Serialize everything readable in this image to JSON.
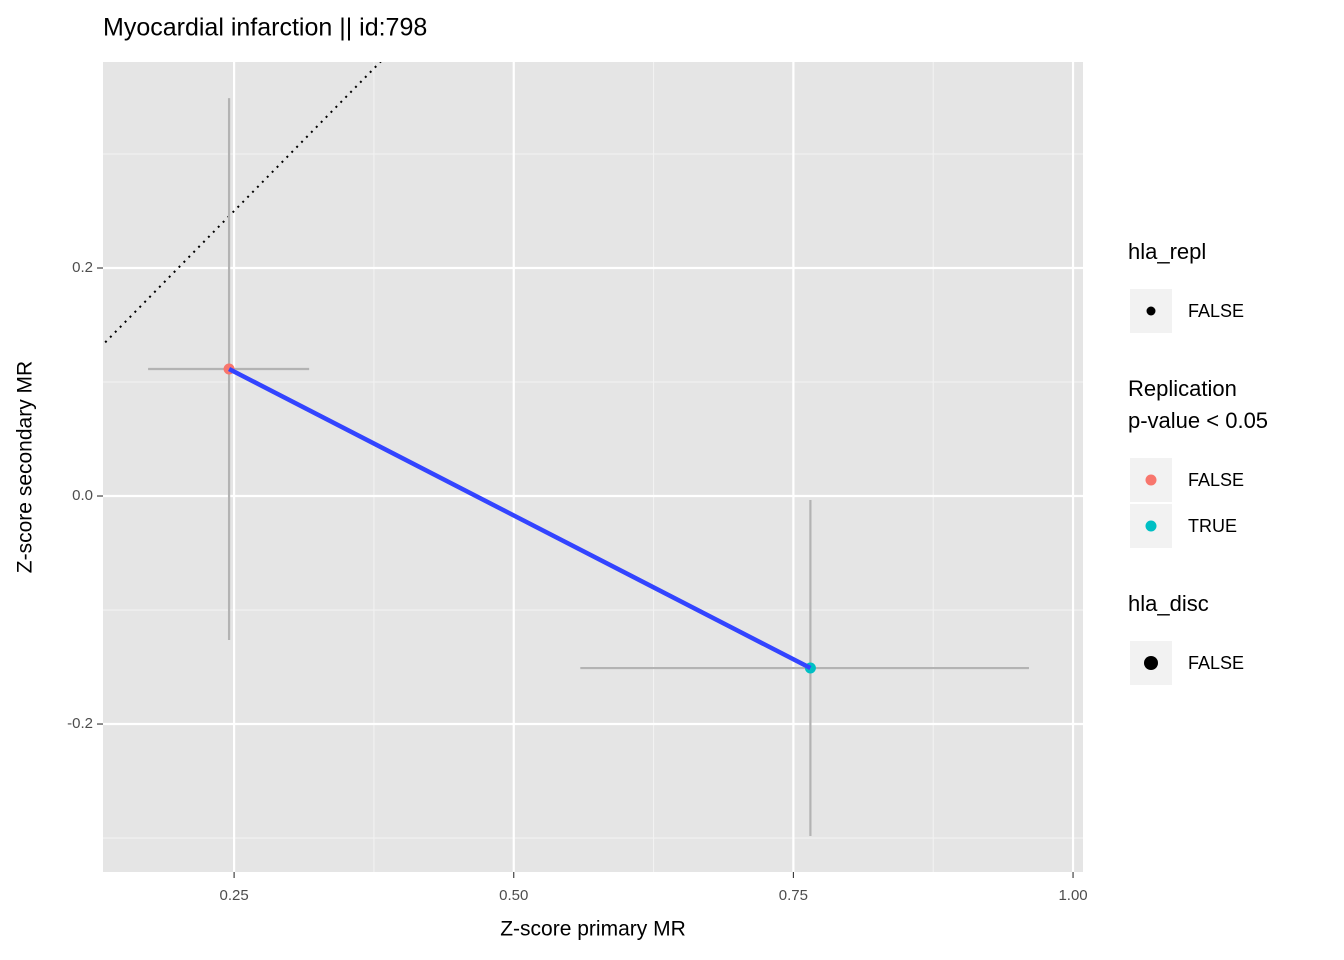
{
  "chart_data": {
    "type": "scatter",
    "title": "Myocardial infarction || id:798",
    "x_label": "Z-score primary MR",
    "y_label": "Z-score secondary MR",
    "xlim": [
      0.1328,
      1.0089
    ],
    "ylim": [
      -0.3298,
      0.3807
    ],
    "xticks": [
      {
        "value": 0.25,
        "label": "0.25"
      },
      {
        "value": 0.5,
        "label": "0.50"
      },
      {
        "value": 0.75,
        "label": "0.75"
      },
      {
        "value": 1.0,
        "label": "1.00"
      }
    ],
    "yticks": [
      {
        "value": -0.2,
        "label": "-0.2"
      },
      {
        "value": 0.0,
        "label": "0.0"
      },
      {
        "value": 0.2,
        "label": "0.2"
      }
    ],
    "grid": true,
    "identity_line": true,
    "series": [
      {
        "x": [
          0.2455,
          0.7652
        ],
        "y": [
          0.1114,
          -0.1509
        ],
        "colors": [
          "#F8766D",
          "#00BFC4"
        ],
        "x_lower": [
          0.1731,
          0.5595
        ],
        "x_upper": [
          0.3171,
          0.9606
        ],
        "y_lower": [
          -0.1263,
          -0.2982
        ],
        "y_upper": [
          0.349,
          -0.0035
        ],
        "line_color": "#3344ff",
        "errorbar_color": "#b3b3b3"
      }
    ],
    "legends": [
      {
        "title": [
          "hla_repl"
        ],
        "entries": [
          {
            "label": "FALSE",
            "color": "#000000",
            "size": "small"
          }
        ]
      },
      {
        "title": [
          "Replication",
          "p-value < 0.05"
        ],
        "entries": [
          {
            "label": "FALSE",
            "color": "#F8766D",
            "size": "medium"
          },
          {
            "label": "TRUE",
            "color": "#00BFC4",
            "size": "medium"
          }
        ]
      },
      {
        "title": [
          "hla_disc"
        ],
        "entries": [
          {
            "label": "FALSE",
            "color": "#000000",
            "size": "large"
          }
        ]
      }
    ]
  }
}
